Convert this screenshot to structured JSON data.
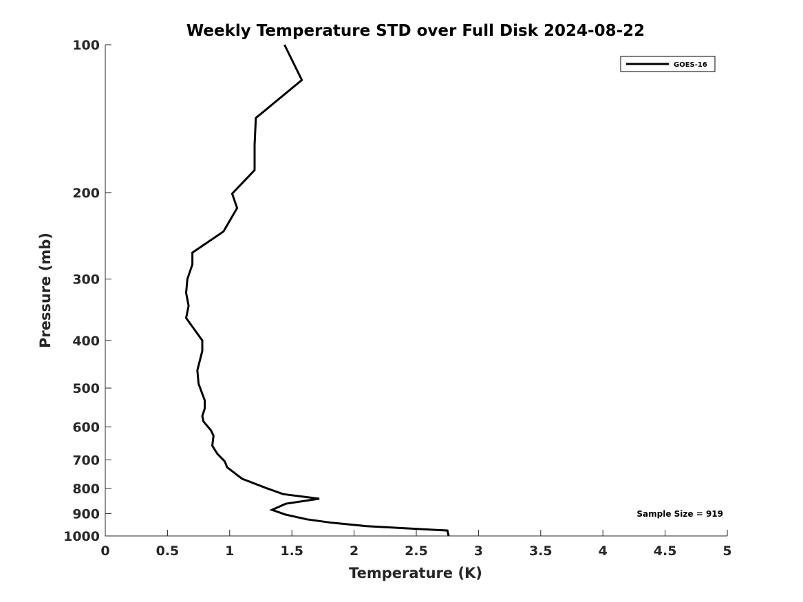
{
  "chart_data": {
    "type": "line",
    "title": "Weekly Temperature STD over Full Disk 2024-08-22",
    "xlabel": "Temperature (K)",
    "ylabel": "Pressure (mb)",
    "xlim": [
      0,
      5
    ],
    "ylim": [
      100,
      1000
    ],
    "y_scale": "log",
    "y_reversed": true,
    "grid": false,
    "legend_position": "top-right",
    "x_ticks": [
      {
        "value": 0,
        "label": "0"
      },
      {
        "value": 0.5,
        "label": "0.5"
      },
      {
        "value": 1,
        "label": "1"
      },
      {
        "value": 1.5,
        "label": "1.5"
      },
      {
        "value": 2,
        "label": "2"
      },
      {
        "value": 2.5,
        "label": "2.5"
      },
      {
        "value": 3,
        "label": "3"
      },
      {
        "value": 3.5,
        "label": "3.5"
      },
      {
        "value": 4,
        "label": "4"
      },
      {
        "value": 4.5,
        "label": "4.5"
      },
      {
        "value": 5,
        "label": "5"
      }
    ],
    "y_ticks": [
      {
        "value": 100,
        "label": "100"
      },
      {
        "value": 200,
        "label": "200"
      },
      {
        "value": 300,
        "label": "300"
      },
      {
        "value": 400,
        "label": "400"
      },
      {
        "value": 500,
        "label": "500"
      },
      {
        "value": 600,
        "label": "600"
      },
      {
        "value": 700,
        "label": "700"
      },
      {
        "value": 800,
        "label": "800"
      },
      {
        "value": 900,
        "label": "900"
      },
      {
        "value": 1000,
        "label": "1000"
      }
    ],
    "series": [
      {
        "name": "GOES-16",
        "color": "#000000",
        "points": [
          {
            "temp": 1.44,
            "pressure": 100
          },
          {
            "temp": 1.58,
            "pressure": 118
          },
          {
            "temp": 1.21,
            "pressure": 141
          },
          {
            "temp": 1.2,
            "pressure": 160
          },
          {
            "temp": 1.2,
            "pressure": 180
          },
          {
            "temp": 1.02,
            "pressure": 201
          },
          {
            "temp": 1.06,
            "pressure": 215
          },
          {
            "temp": 0.95,
            "pressure": 240
          },
          {
            "temp": 0.7,
            "pressure": 265
          },
          {
            "temp": 0.7,
            "pressure": 280
          },
          {
            "temp": 0.66,
            "pressure": 300
          },
          {
            "temp": 0.65,
            "pressure": 320
          },
          {
            "temp": 0.67,
            "pressure": 340
          },
          {
            "temp": 0.65,
            "pressure": 360
          },
          {
            "temp": 0.78,
            "pressure": 400
          },
          {
            "temp": 0.78,
            "pressure": 420
          },
          {
            "temp": 0.74,
            "pressure": 460
          },
          {
            "temp": 0.75,
            "pressure": 490
          },
          {
            "temp": 0.8,
            "pressure": 530
          },
          {
            "temp": 0.8,
            "pressure": 550
          },
          {
            "temp": 0.78,
            "pressure": 570
          },
          {
            "temp": 0.79,
            "pressure": 585
          },
          {
            "temp": 0.85,
            "pressure": 610
          },
          {
            "temp": 0.87,
            "pressure": 625
          },
          {
            "temp": 0.86,
            "pressure": 655
          },
          {
            "temp": 0.9,
            "pressure": 680
          },
          {
            "temp": 0.96,
            "pressure": 705
          },
          {
            "temp": 0.98,
            "pressure": 725
          },
          {
            "temp": 1.1,
            "pressure": 765
          },
          {
            "temp": 1.3,
            "pressure": 800
          },
          {
            "temp": 1.43,
            "pressure": 822
          },
          {
            "temp": 1.72,
            "pressure": 840
          },
          {
            "temp": 1.45,
            "pressure": 860
          },
          {
            "temp": 1.34,
            "pressure": 885
          },
          {
            "temp": 1.45,
            "pressure": 905
          },
          {
            "temp": 1.62,
            "pressure": 925
          },
          {
            "temp": 1.82,
            "pressure": 940
          },
          {
            "temp": 2.1,
            "pressure": 955
          },
          {
            "temp": 2.75,
            "pressure": 975
          },
          {
            "temp": 2.76,
            "pressure": 1000
          }
        ]
      }
    ],
    "annotation": "Sample Size = 919"
  }
}
